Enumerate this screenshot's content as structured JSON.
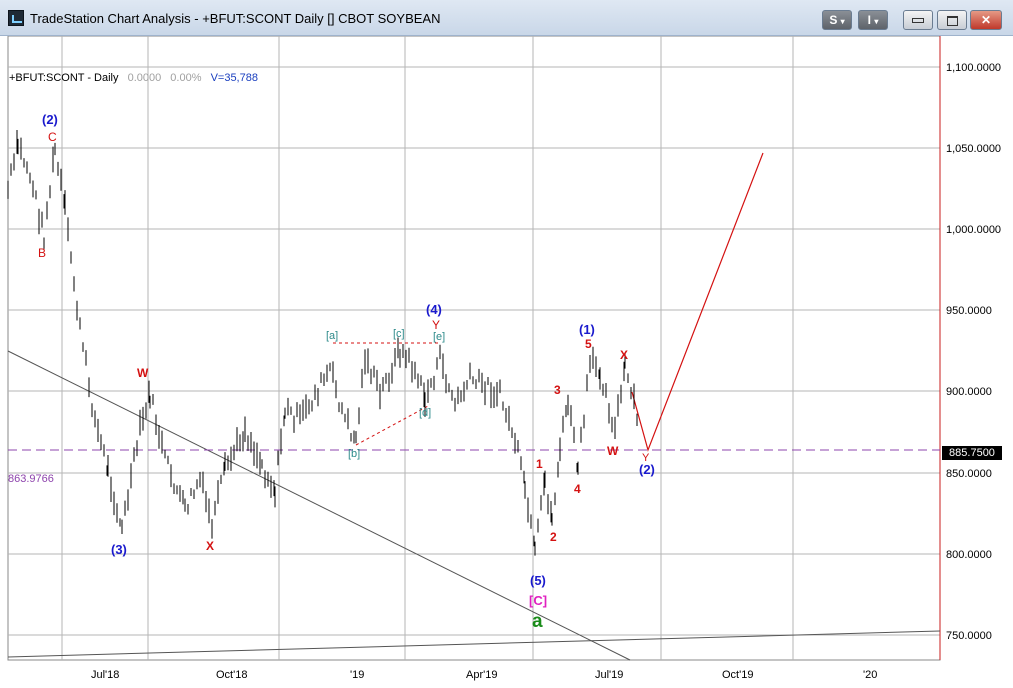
{
  "window": {
    "title": "TradeStation Chart Analysis - +BFUT:SCONT Daily [] CBOT SOYBEAN",
    "btn_s": "S",
    "btn_i": "I"
  },
  "legend": {
    "symbol": "+BFUT:SCONT - Daily",
    "change": "0.0000",
    "change_pct": "0.00%",
    "volume": "V=35,788"
  },
  "price_axis": [
    "1,100.0000",
    "1,050.0000",
    "1,000.0000",
    "950.0000",
    "900.0000",
    "850.0000",
    "800.0000",
    "750.0000"
  ],
  "last_price": "885.7500",
  "ref_level": "863.9766",
  "time_axis": [
    "Jul'18",
    "Oct'18",
    "'19",
    "Apr'19",
    "Jul'19",
    "Oct'19",
    "'20"
  ],
  "labels": {
    "p2_major": "(2)",
    "c_top": "C",
    "b_red": "B",
    "w1": "W",
    "x1": "X",
    "p3": "(3)",
    "a_sub": "[a]",
    "b_sub": "[b]",
    "c_sub": "[c]",
    "d_sub": "[d]",
    "e_sub": "[e]",
    "p4": "(4)",
    "y1": "Y",
    "n1": "1",
    "n2": "2",
    "n3": "3",
    "n4": "4",
    "n5": "5",
    "p5": "(5)",
    "c_mag": "[C]",
    "a_green": "a",
    "p1": "(1)",
    "w2": "W",
    "x2": "X",
    "y2": "Y",
    "p2_end": "(2)"
  },
  "colors": {
    "blue": "#1a1acd",
    "red": "#d41111",
    "teal": "#2e8b8b",
    "magenta": "#e020c0",
    "green": "#1a8c1a",
    "purple": "#8e44ad"
  }
}
